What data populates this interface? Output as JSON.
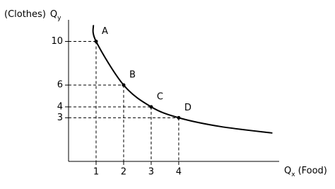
{
  "chart_data": {
    "type": "line",
    "y_label_prefix": "(Clothes)",
    "y_label": "Q",
    "y_label_sub": "y",
    "x_label": "Q",
    "x_label_sub": "x",
    "x_label_suffix": "(Food)",
    "xlim": [
      0,
      7.8
    ],
    "ylim": [
      -1,
      12.5
    ],
    "xticks": [
      1,
      2,
      3,
      4
    ],
    "yticks": [
      3,
      4,
      6,
      10
    ],
    "color": "#000000",
    "curve": {
      "x": [
        0.9,
        1,
        2,
        3,
        4,
        5.5,
        7.4
      ],
      "values": [
        11.5,
        10,
        6,
        4,
        3,
        2.2,
        1.6
      ]
    },
    "points": {
      "labels": [
        "A",
        "B",
        "C",
        "D"
      ],
      "x": [
        1,
        2,
        3,
        4
      ],
      "values": [
        10,
        6,
        4,
        3
      ]
    }
  }
}
